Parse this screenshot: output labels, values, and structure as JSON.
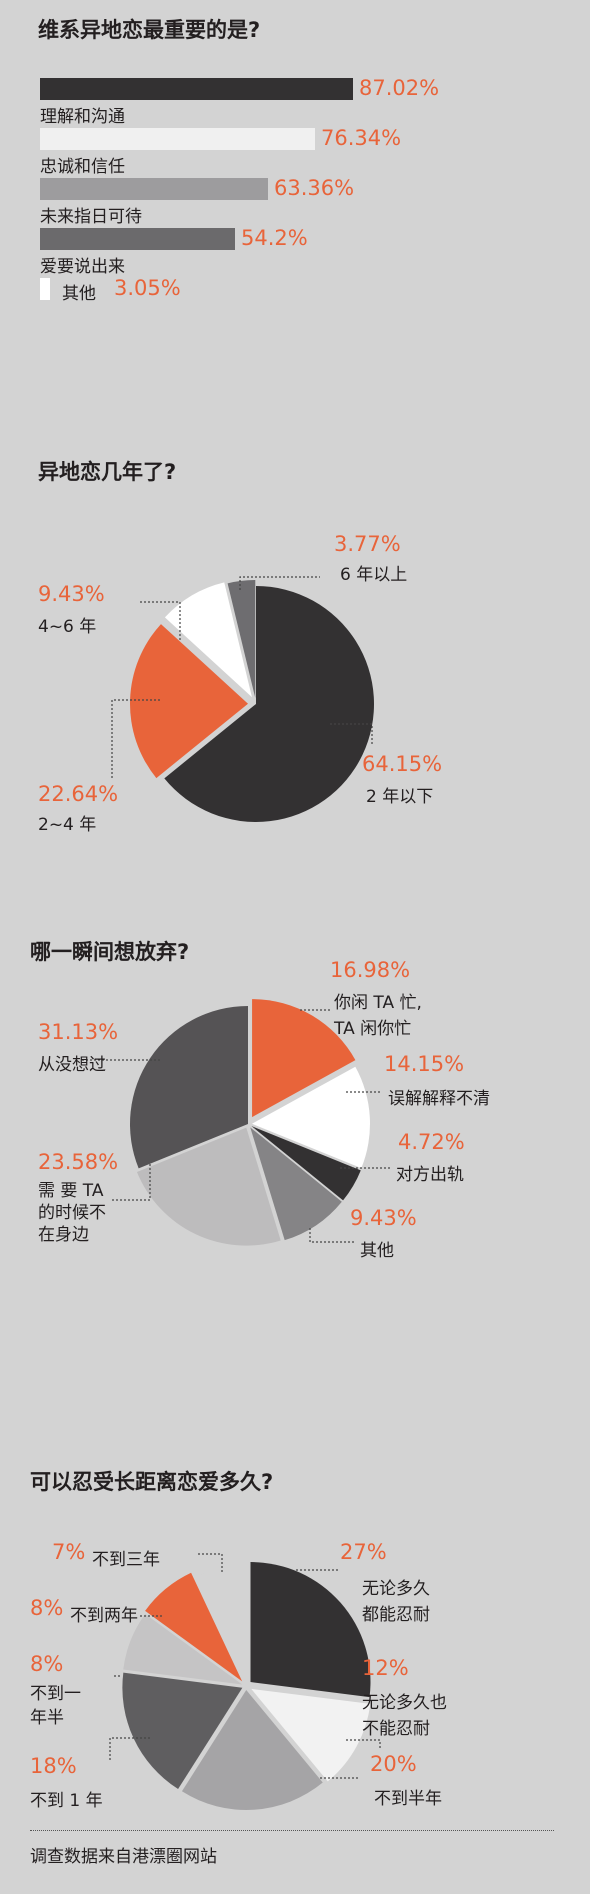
{
  "colors": {
    "background": "#d3d3d3",
    "accent": "#e8643a",
    "dark": "#333132",
    "mid_dark": "#555355",
    "mid": "#858486",
    "light": "#b5b4b5",
    "very_light": "#eeeeee",
    "white": "#ffffff",
    "text": "#231f20"
  },
  "footer": "调查数据来自港漂圈网站",
  "chart_data": [
    {
      "type": "bar",
      "title": "维系异地恋最重要的是?",
      "categories": [
        "理解和沟通",
        "忠诚和信任",
        "未来指日可待",
        "爱要说出来",
        "其他"
      ],
      "values": [
        87.02,
        76.34,
        63.36,
        54.2,
        3.05
      ],
      "value_labels": [
        "87.02%",
        "76.34%",
        "63.36%",
        "54.2%",
        "3.05%"
      ],
      "bar_colors": [
        "#333132",
        "#f0f0f0",
        "#9d9c9e",
        "#6b6a6c",
        "#ffffff"
      ]
    },
    {
      "type": "pie",
      "title": "异地恋几年了?",
      "slices": [
        {
          "label": "2 年以下",
          "value": 64.15,
          "pct": "64.15%",
          "color": "#333132"
        },
        {
          "label": "2~4 年",
          "value": 22.64,
          "pct": "22.64%",
          "color": "#e8643a"
        },
        {
          "label": "4~6 年",
          "value": 9.43,
          "pct": "9.43%",
          "color": "#ffffff"
        },
        {
          "label": "6 年以上",
          "value": 3.77,
          "pct": "3.77%",
          "color": "#6e6d70"
        }
      ]
    },
    {
      "type": "pie",
      "title": "哪一瞬间想放弃?",
      "slices": [
        {
          "label": "你闲 TA 忙,\nTA 闲你忙",
          "value": 16.98,
          "pct": "16.98%",
          "color": "#e8643a"
        },
        {
          "label": "误解解释不清",
          "value": 14.15,
          "pct": "14.15%",
          "color": "#ffffff"
        },
        {
          "label": "对方出轨",
          "value": 4.72,
          "pct": "4.72%",
          "color": "#333132"
        },
        {
          "label": "其他",
          "value": 9.43,
          "pct": "9.43%",
          "color": "#858486"
        },
        {
          "label": "需 要 TA\n的时候不\n在身边",
          "value": 23.58,
          "pct": "23.58%",
          "color": "#bdbcbd"
        },
        {
          "label": "从没想过",
          "value": 31.13,
          "pct": "31.13%",
          "color": "#555355"
        }
      ]
    },
    {
      "type": "pie",
      "title": "可以忍受长距离恋爱多久?",
      "slices": [
        {
          "label": "无论多久\n都能忍耐",
          "value": 27,
          "pct": "27%",
          "color": "#333132"
        },
        {
          "label": "无论多久也\n不能忍耐",
          "value": 12,
          "pct": "12%",
          "color": "#f2f2f2"
        },
        {
          "label": "不到半年",
          "value": 20,
          "pct": "20%",
          "color": "#a5a4a6"
        },
        {
          "label": "不到 1 年",
          "value": 18,
          "pct": "18%",
          "color": "#5f5e60"
        },
        {
          "label": "不到一\n年半",
          "value": 8,
          "pct": "8%",
          "color": "#c5c4c5"
        },
        {
          "label": "不到两年",
          "value": 8,
          "pct": "8%",
          "color": "#e8643a"
        },
        {
          "label": "不到三年",
          "value": 7,
          "pct": "7%",
          "color": "#d3d3d3"
        }
      ]
    }
  ]
}
